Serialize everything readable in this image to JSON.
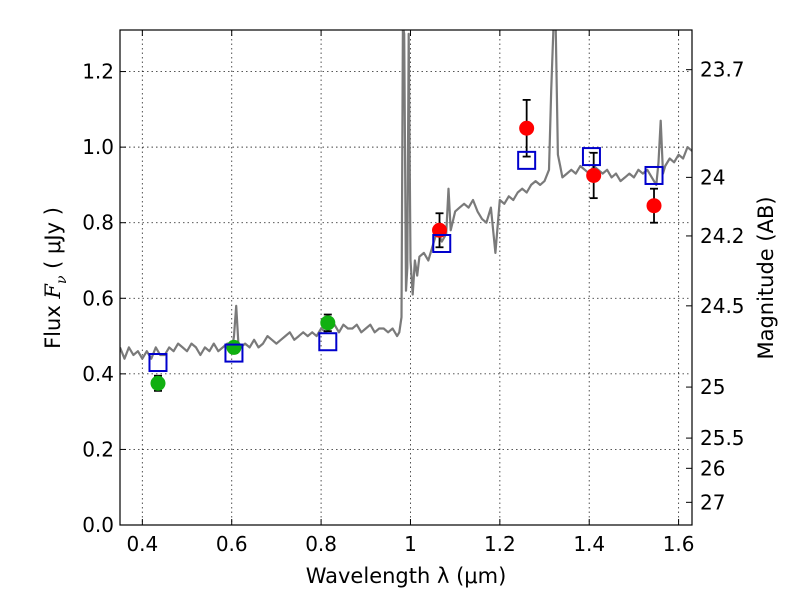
{
  "chart_data": {
    "type": "scatter",
    "xlabel": "Wavelength  λ (μm)",
    "ylabel_prefix": "Flux  ",
    "ylabel_symbol": "F",
    "ylabel_subscript": "ν",
    "ylabel_units": "  ( μJy )",
    "y2label": "Magnitude (AB)",
    "xlim": [
      0.35,
      1.63
    ],
    "ylim": [
      0.0,
      1.31
    ],
    "grid": true,
    "x_ticks": [
      {
        "value": 0.4,
        "label": "0.4"
      },
      {
        "value": 0.6,
        "label": "0.6"
      },
      {
        "value": 0.8,
        "label": "0.8"
      },
      {
        "value": 1.0,
        "label": "1"
      },
      {
        "value": 1.2,
        "label": "1.2"
      },
      {
        "value": 1.4,
        "label": "1.4"
      },
      {
        "value": 1.6,
        "label": "1.6"
      }
    ],
    "y_ticks": [
      {
        "value": 0.0,
        "label": "0.0"
      },
      {
        "value": 0.2,
        "label": "0.2"
      },
      {
        "value": 0.4,
        "label": "0.4"
      },
      {
        "value": 0.6,
        "label": "0.6"
      },
      {
        "value": 0.8,
        "label": "0.8"
      },
      {
        "value": 1.0,
        "label": "1.0"
      },
      {
        "value": 1.2,
        "label": "1.2"
      }
    ],
    "y2_ticks": [
      {
        "flux": 1.205,
        "label": "23.7"
      },
      {
        "flux": 0.92,
        "label": "24"
      },
      {
        "flux": 0.765,
        "label": "24.2"
      },
      {
        "flux": 0.58,
        "label": "24.5"
      },
      {
        "flux": 0.365,
        "label": "25"
      },
      {
        "flux": 0.23,
        "label": "25.5"
      },
      {
        "flux": 0.15,
        "label": "26"
      },
      {
        "flux": 0.06,
        "label": "27"
      }
    ],
    "series": [
      {
        "kind": "line",
        "color": "#7a7a7a",
        "x": [
          0.35,
          0.36,
          0.37,
          0.38,
          0.39,
          0.4,
          0.41,
          0.42,
          0.43,
          0.44,
          0.45,
          0.46,
          0.47,
          0.48,
          0.49,
          0.5,
          0.51,
          0.52,
          0.53,
          0.54,
          0.55,
          0.56,
          0.57,
          0.58,
          0.59,
          0.6,
          0.605,
          0.61,
          0.615,
          0.62,
          0.63,
          0.64,
          0.65,
          0.66,
          0.67,
          0.68,
          0.69,
          0.7,
          0.71,
          0.72,
          0.73,
          0.74,
          0.75,
          0.76,
          0.77,
          0.78,
          0.79,
          0.8,
          0.81,
          0.82,
          0.83,
          0.84,
          0.85,
          0.86,
          0.87,
          0.88,
          0.89,
          0.9,
          0.91,
          0.92,
          0.93,
          0.94,
          0.95,
          0.96,
          0.97,
          0.975,
          0.98,
          0.983,
          0.986,
          0.99,
          0.993,
          0.996,
          1.0,
          1.005,
          1.01,
          1.015,
          1.02,
          1.03,
          1.04,
          1.05,
          1.06,
          1.07,
          1.08,
          1.085,
          1.09,
          1.1,
          1.11,
          1.12,
          1.13,
          1.14,
          1.15,
          1.16,
          1.17,
          1.18,
          1.19,
          1.2,
          1.21,
          1.22,
          1.23,
          1.24,
          1.25,
          1.26,
          1.27,
          1.28,
          1.29,
          1.3,
          1.31,
          1.315,
          1.32,
          1.325,
          1.33,
          1.335,
          1.34,
          1.35,
          1.36,
          1.37,
          1.38,
          1.39,
          1.4,
          1.41,
          1.42,
          1.43,
          1.44,
          1.45,
          1.46,
          1.47,
          1.48,
          1.49,
          1.5,
          1.51,
          1.52,
          1.53,
          1.54,
          1.55,
          1.555,
          1.56,
          1.565,
          1.57,
          1.58,
          1.59,
          1.6,
          1.61,
          1.62,
          1.63
        ],
        "y": [
          0.47,
          0.44,
          0.47,
          0.45,
          0.46,
          0.44,
          0.46,
          0.44,
          0.47,
          0.45,
          0.45,
          0.47,
          0.46,
          0.48,
          0.47,
          0.46,
          0.48,
          0.47,
          0.45,
          0.47,
          0.46,
          0.48,
          0.46,
          0.47,
          0.48,
          0.46,
          0.5,
          0.58,
          0.48,
          0.47,
          0.48,
          0.47,
          0.49,
          0.47,
          0.48,
          0.5,
          0.49,
          0.48,
          0.49,
          0.5,
          0.51,
          0.49,
          0.5,
          0.51,
          0.5,
          0.51,
          0.5,
          0.52,
          0.51,
          0.52,
          0.53,
          0.51,
          0.53,
          0.52,
          0.52,
          0.53,
          0.51,
          0.52,
          0.53,
          0.51,
          0.52,
          0.52,
          0.51,
          0.52,
          0.5,
          0.51,
          0.55,
          1.32,
          1.3,
          0.62,
          0.68,
          1.3,
          0.7,
          0.61,
          0.7,
          0.66,
          0.71,
          0.72,
          0.7,
          0.74,
          0.78,
          0.75,
          0.77,
          0.89,
          0.78,
          0.83,
          0.84,
          0.85,
          0.84,
          0.86,
          0.83,
          0.81,
          0.8,
          0.84,
          0.72,
          0.86,
          0.85,
          0.87,
          0.86,
          0.88,
          0.89,
          0.88,
          0.9,
          0.91,
          0.9,
          0.91,
          0.94,
          1.15,
          1.32,
          1.32,
          0.98,
          0.95,
          0.92,
          0.93,
          0.94,
          0.93,
          0.95,
          0.94,
          0.93,
          0.95,
          0.94,
          0.93,
          0.94,
          0.92,
          0.93,
          0.91,
          0.92,
          0.93,
          0.92,
          0.94,
          0.93,
          0.94,
          0.92,
          0.9,
          0.96,
          1.07,
          0.93,
          0.95,
          0.97,
          0.96,
          0.98,
          0.97,
          1.0,
          0.99
        ]
      },
      {
        "kind": "points",
        "color": "#10b010",
        "x": [
          0.435,
          0.605,
          0.815
        ],
        "y": [
          0.375,
          0.47,
          0.535
        ],
        "err": [
          0.02,
          0.015,
          0.022
        ]
      },
      {
        "kind": "points",
        "color": "#ff0000",
        "x": [
          1.065,
          1.26,
          1.41,
          1.545
        ],
        "y": [
          0.78,
          1.05,
          0.925,
          0.845
        ],
        "err": [
          0.045,
          0.075,
          0.06,
          0.045
        ]
      },
      {
        "kind": "squares",
        "color": "#0000cc",
        "x": [
          0.435,
          0.605,
          0.815,
          1.07,
          1.26,
          1.405,
          1.545
        ],
        "y": [
          0.43,
          0.455,
          0.485,
          0.745,
          0.965,
          0.975,
          0.925
        ]
      }
    ]
  }
}
